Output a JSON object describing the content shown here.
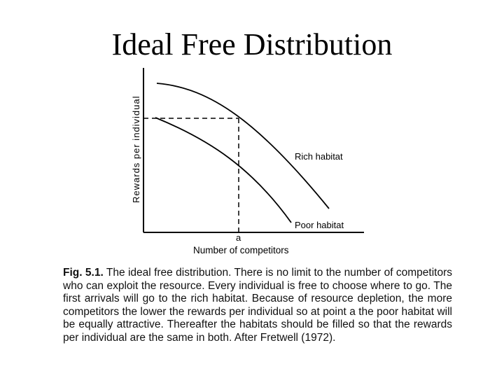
{
  "slide": {
    "title": "Ideal Free Distribution"
  },
  "figure": {
    "y_axis_label": "Rewards per individual",
    "x_axis_label": "Number of competitors",
    "point_label": "a",
    "curves": [
      {
        "name": "Rich habitat"
      },
      {
        "name": "Poor habitat"
      }
    ]
  },
  "caption": {
    "label": "Fig. 5.1.",
    "text": "The ideal free distribution. There is no limit to the number of competitors who can exploit the resource. Every individual is free to choose where to go. The first arrivals will go to the rich habitat. Because of resource depletion, the more competitors the lower the rewards per individual so at point a the poor habitat will be equally attractive. Thereafter the habitats should be filled so that the rewards per individual are the same in both. After Fretwell (1972)."
  }
}
